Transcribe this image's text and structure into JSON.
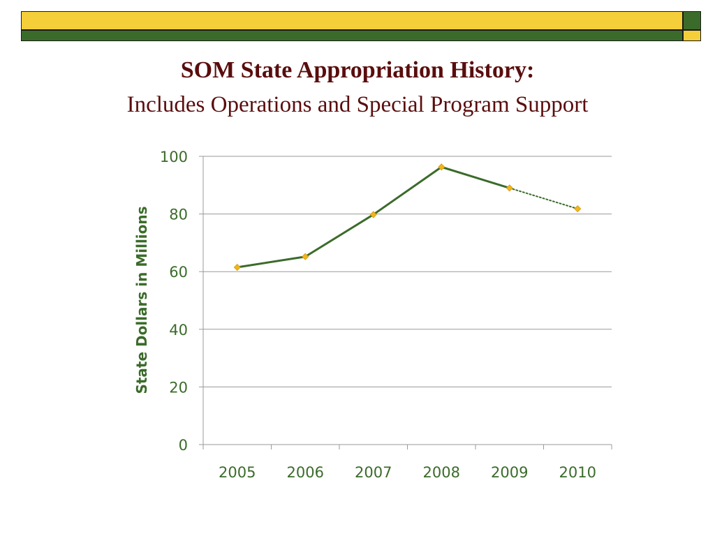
{
  "slide": {
    "title": "SOM State Appropriation History:",
    "subtitle": "Includes Operations and Special Program Support"
  },
  "colors": {
    "band_yellow": "#f5cf3a",
    "band_green": "#3b6b2a",
    "title": "#5a0d0d",
    "series_line": "#3b6b2a",
    "marker": "#f2b51c",
    "tick_text": "#3b6b2a",
    "grid": "#9a9a9a"
  },
  "chart_data": {
    "type": "line",
    "title": "",
    "xlabel": "",
    "ylabel": "State Dollars in Millions",
    "categories": [
      "2005",
      "2006",
      "2007",
      "2008",
      "2009",
      "2010"
    ],
    "series": [
      {
        "values": [
          61.5,
          65.2,
          79.8,
          96.3,
          89.0,
          81.8
        ],
        "projected_from_index": 4,
        "marker": "diamond"
      }
    ],
    "ylim": [
      0,
      100
    ],
    "yticks": [
      0,
      20,
      40,
      60,
      80,
      100
    ],
    "grid": true,
    "legend": "none"
  }
}
